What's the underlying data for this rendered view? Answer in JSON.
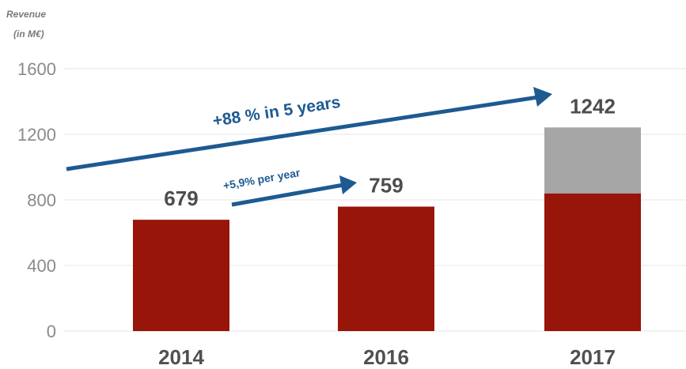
{
  "chart_data": {
    "type": "bar",
    "ylabel": "Revenue\n(in M€)",
    "ylabel_lines": [
      "Revenue",
      "(in M€)"
    ],
    "categories": [
      "2014",
      "2016",
      "2017"
    ],
    "series": [
      {
        "values": [
          679,
          759,
          840
        ]
      },
      {
        "values": [
          0,
          0,
          402
        ]
      }
    ],
    "totals": [
      679,
      759,
      1242
    ],
    "data_labels": [
      "679",
      "759",
      "1242"
    ],
    "yticks": [
      0,
      400,
      800,
      1200,
      1600
    ],
    "ylim": [
      0,
      1600
    ],
    "grid": true,
    "annotations": [
      {
        "text": "+88 % in 5 years"
      },
      {
        "text": "+5,9% per year"
      }
    ],
    "colors": {
      "primary": "#971509",
      "secondary": "#a6a6a6",
      "arrow": "#1d5a92"
    }
  }
}
